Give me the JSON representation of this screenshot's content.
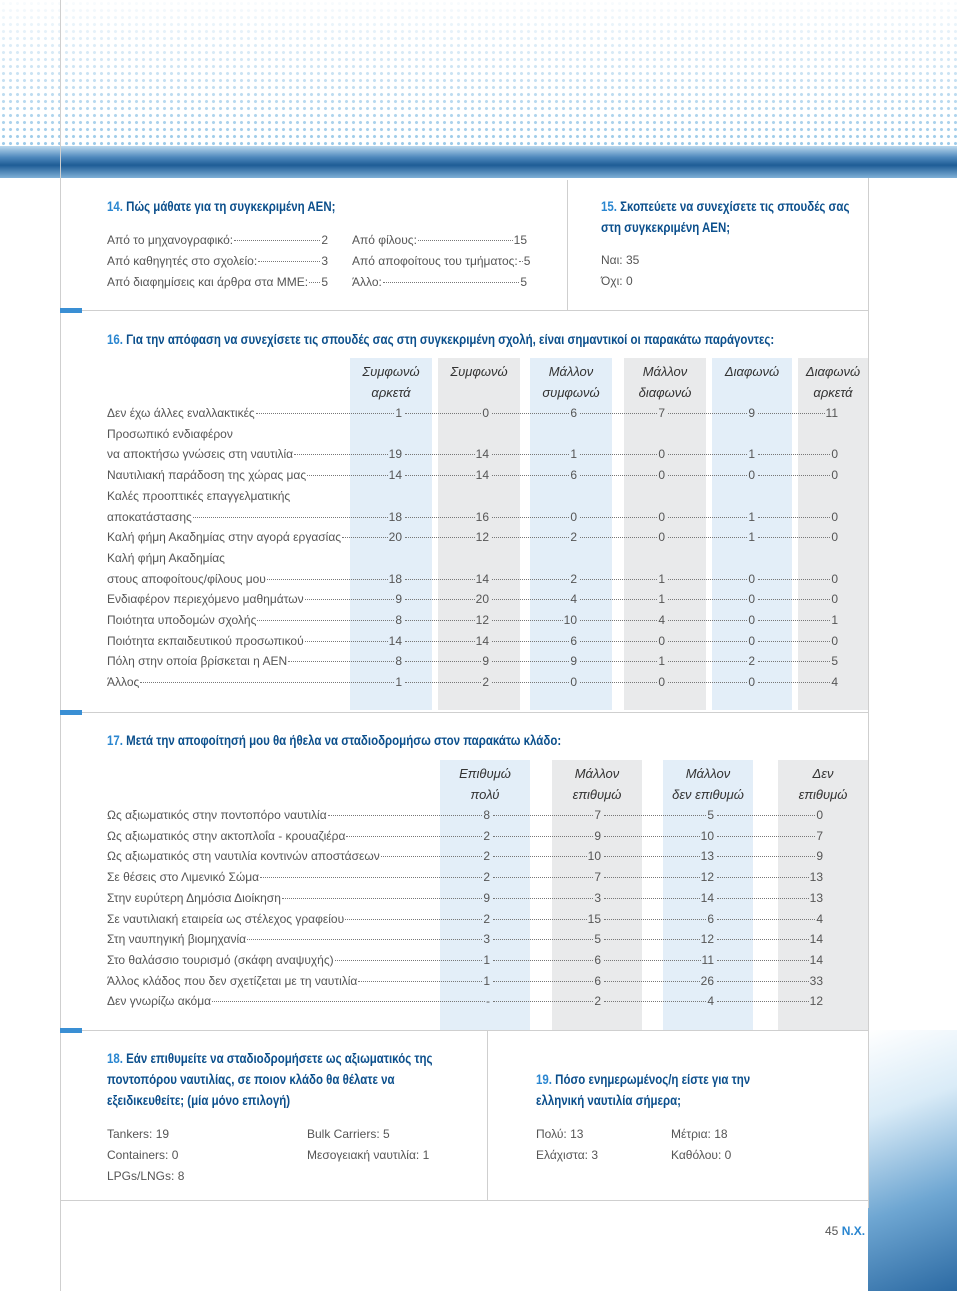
{
  "q14": {
    "number": "14.",
    "title": "Πώς μάθατε για τη συγκεκριμένη ΑΕΝ;",
    "columns": [
      [
        {
          "label": "Από το μηχανογραφικό:",
          "value": 2
        },
        {
          "label": "Από καθηγητές στο σχολείο:",
          "value": 3
        },
        {
          "label": "Από διαφημίσεις και άρθρα στα ΜΜΕ:",
          "value": 5
        }
      ],
      [
        {
          "label": "Από φίλους:",
          "value": 15
        },
        {
          "label": "Από αποφοίτους του τμήματος:",
          "value": 5
        },
        {
          "label": "Άλλο:",
          "value": 5
        }
      ]
    ]
  },
  "q15": {
    "number": "15.",
    "title": "Σκοπεύετε να συνεχίσετε τις σπουδές σας στη συγκεκριμένη ΑΕΝ;",
    "items": [
      {
        "label": "Ναι:",
        "value": 35
      },
      {
        "label": "Όχι:",
        "value": 0
      }
    ]
  },
  "q16": {
    "number": "16.",
    "title": "Για την  απόφαση να συνεχίσετε τις σπουδές σας στη συγκεκριμένη σχολή, είναι σημαντικοί οι παρακάτω παράγοντες:",
    "headers": [
      [
        "Συμφωνώ",
        "αρκετά"
      ],
      [
        "Συμφωνώ"
      ],
      [
        "Μάλλον",
        "συμφωνώ"
      ],
      [
        "Μάλλον",
        "διαφωνώ"
      ],
      [
        "Διαφωνώ"
      ],
      [
        "Διαφωνώ",
        "αρκετά"
      ]
    ],
    "rows": [
      {
        "lines": [
          "Δεν έχω άλλες εναλλακτικές"
        ],
        "values": [
          1,
          0,
          6,
          7,
          9,
          11
        ]
      },
      {
        "lines": [
          "Προσωπικό ενδιαφέρον",
          "να αποκτήσω γνώσεις στη ναυτιλία"
        ],
        "values": [
          19,
          14,
          1,
          0,
          1,
          0
        ]
      },
      {
        "lines": [
          "Ναυτιλιακή παράδοση της χώρας μας"
        ],
        "values": [
          14,
          14,
          6,
          0,
          0,
          0
        ]
      },
      {
        "lines": [
          "Καλές προοπτικές επαγγελματικής",
          "αποκατάστασης"
        ],
        "values": [
          18,
          16,
          0,
          0,
          1,
          0
        ]
      },
      {
        "lines": [
          "Καλή φήμη Ακαδημίας στην αγορά εργασίας"
        ],
        "values": [
          20,
          12,
          2,
          0,
          1,
          0
        ]
      },
      {
        "lines": [
          "Καλή φήμη Ακαδημίας",
          "στους αποφοίτους/φίλους μου"
        ],
        "values": [
          18,
          14,
          2,
          1,
          0,
          0
        ]
      },
      {
        "lines": [
          "Ενδιαφέρον περιεχόμενο μαθημάτων"
        ],
        "values": [
          9,
          20,
          4,
          1,
          0,
          0
        ]
      },
      {
        "lines": [
          "Ποιότητα υποδομών σχολής"
        ],
        "values": [
          8,
          12,
          10,
          4,
          0,
          1
        ]
      },
      {
        "lines": [
          "Ποιότητα εκπαιδευτικού προσωπικού"
        ],
        "values": [
          14,
          14,
          6,
          0,
          0,
          0
        ]
      },
      {
        "lines": [
          "Πόλη στην οποία βρίσκεται η ΑΕΝ"
        ],
        "values": [
          8,
          9,
          9,
          1,
          2,
          5
        ]
      },
      {
        "lines": [
          "Άλλος"
        ],
        "values": [
          1,
          2,
          0,
          0,
          0,
          4
        ]
      }
    ]
  },
  "q17": {
    "number": "17.",
    "title": "Μετά την αποφοίτησή μου θα ήθελα να σταδιοδρομήσω στον παρακάτω κλάδο:",
    "headers": [
      [
        "Επιθυμώ",
        "πολύ"
      ],
      [
        "Μάλλον",
        "επιθυμώ"
      ],
      [
        "Μάλλον",
        "δεν επιθυμώ"
      ],
      [
        "Δεν",
        "επιθυμώ"
      ]
    ],
    "rows": [
      {
        "lines": [
          "Ως αξιωματικός στην ποντοπόρο ναυτιλία"
        ],
        "values": [
          8,
          7,
          5,
          0
        ]
      },
      {
        "lines": [
          "Ως αξιωματικός στην ακτοπλοΐα - κρουαζιέρα"
        ],
        "values": [
          2,
          9,
          10,
          7
        ]
      },
      {
        "lines": [
          "Ως αξιωματικός στη ναυτιλία κοντινών αποστάσεων"
        ],
        "values": [
          2,
          10,
          13,
          9
        ]
      },
      {
        "lines": [
          "Σε θέσεις στο Λιμενικό Σώμα"
        ],
        "values": [
          2,
          7,
          12,
          13
        ]
      },
      {
        "lines": [
          "Στην ευρύτερη Δημόσια Διοίκηση"
        ],
        "values": [
          9,
          3,
          14,
          13
        ]
      },
      {
        "lines": [
          "Σε ναυτιλιακή εταιρεία ως στέλεχος γραφείου"
        ],
        "values": [
          2,
          15,
          6,
          4
        ]
      },
      {
        "lines": [
          "Στη ναυπηγική βιομηχανία"
        ],
        "values": [
          3,
          5,
          12,
          14
        ]
      },
      {
        "lines": [
          "Στο θαλάσσιο τουρισμό (σκάφη αναψυχής)"
        ],
        "values": [
          1,
          6,
          11,
          14
        ]
      },
      {
        "lines": [
          "Άλλος κλάδος που δεν σχετίζεται με τη ναυτιλία"
        ],
        "values": [
          1,
          6,
          26,
          33
        ]
      },
      {
        "lines": [
          "Δεν γνωρίζω ακόμα"
        ],
        "values": [
          "-",
          2,
          4,
          12
        ]
      }
    ]
  },
  "q18": {
    "number": "18.",
    "title": "Εάν επιθυμείτε να σταδιοδρομήσετε ως αξιωματικός της ποντοπόρου ναυτιλίας, σε ποιον κλάδο θα θέλατε να εξειδικευθείτε; (μία μόνο επιλογή)",
    "columns": [
      [
        {
          "label": "Tankers:",
          "value": 19
        },
        {
          "label": "Containers:",
          "value": 0
        },
        {
          "label": "LPGs/LNGs:",
          "value": 8
        }
      ],
      [
        {
          "label": "Bulk Carriers:",
          "value": 5
        },
        {
          "label": "Μεσογειακή ναυτιλία:",
          "value": 1
        }
      ]
    ]
  },
  "q19": {
    "number": "19.",
    "title": "Πόσο ενημερωμένος/η είστε για την ελληνική ναυτιλία σήμερα;",
    "columns": [
      [
        {
          "label": "Πολύ:",
          "value": 13
        },
        {
          "label": "Ελάχιστα:",
          "value": 3
        }
      ],
      [
        {
          "label": "Μέτρια:",
          "value": 18
        },
        {
          "label": "Καθόλου:",
          "value": 0
        }
      ]
    ]
  },
  "footer": {
    "page": 45,
    "brand": "Ν.Χ."
  }
}
